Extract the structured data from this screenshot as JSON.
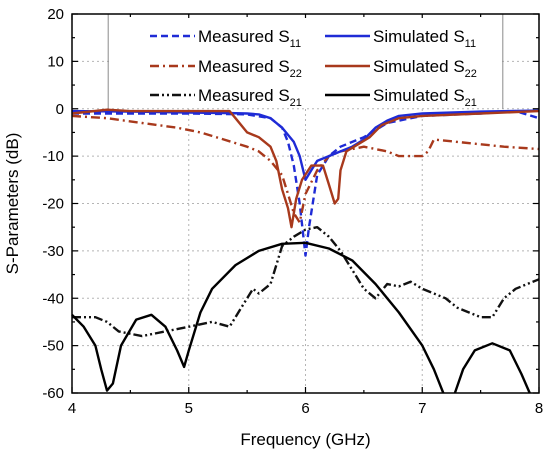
{
  "chart_data": {
    "type": "line",
    "title": "",
    "xlabel": "Frequency (GHz)",
    "ylabel": "S-Parameters (dB)",
    "xlim": [
      4,
      8
    ],
    "ylim": [
      -60,
      20
    ],
    "x_ticks": [
      4,
      5,
      6,
      7,
      8
    ],
    "y_ticks": [
      20,
      10,
      0,
      -10,
      -20,
      -30,
      -40,
      -50,
      -60
    ],
    "grid": true,
    "legend_position": "top",
    "series": [
      {
        "name": "Measured S11",
        "label_main": "Measured S",
        "label_sub": "11",
        "color": "#1f2bd6",
        "dash": "dashed",
        "points": [
          [
            4.0,
            -1.0
          ],
          [
            4.5,
            -1.0
          ],
          [
            5.0,
            -1.0
          ],
          [
            5.3,
            -1.1
          ],
          [
            5.5,
            -1.2
          ],
          [
            5.7,
            -2.0
          ],
          [
            5.8,
            -4.0
          ],
          [
            5.85,
            -7.0
          ],
          [
            5.9,
            -12.0
          ],
          [
            5.95,
            -20.0
          ],
          [
            6.0,
            -31.0
          ],
          [
            6.03,
            -25.0
          ],
          [
            6.1,
            -14.0
          ],
          [
            6.2,
            -10.0
          ],
          [
            6.3,
            -8.0
          ],
          [
            6.5,
            -6.0
          ],
          [
            6.7,
            -3.0
          ],
          [
            7.0,
            -1.5
          ],
          [
            7.5,
            -1.0
          ],
          [
            7.8,
            -0.5
          ],
          [
            8.0,
            -2.0
          ]
        ]
      },
      {
        "name": "Measured S22",
        "label_main": "Measured S",
        "label_sub": "22",
        "color": "#a8391c",
        "dash": "dashdot",
        "points": [
          [
            4.0,
            -1.5
          ],
          [
            4.3,
            -2.0
          ],
          [
            4.6,
            -3.0
          ],
          [
            4.9,
            -4.0
          ],
          [
            5.1,
            -5.0
          ],
          [
            5.3,
            -6.5
          ],
          [
            5.5,
            -8.0
          ],
          [
            5.6,
            -9.0
          ],
          [
            5.7,
            -11.0
          ],
          [
            5.8,
            -14.0
          ],
          [
            5.85,
            -18.0
          ],
          [
            5.9,
            -22.0
          ],
          [
            5.95,
            -24.0
          ],
          [
            6.0,
            -18.0
          ],
          [
            6.1,
            -13.0
          ],
          [
            6.2,
            -10.0
          ],
          [
            6.3,
            -9.0
          ],
          [
            6.5,
            -8.0
          ],
          [
            6.7,
            -9.0
          ],
          [
            6.8,
            -10.0
          ],
          [
            7.0,
            -10.0
          ],
          [
            7.05,
            -9.0
          ],
          [
            7.1,
            -6.5
          ],
          [
            7.3,
            -7.0
          ],
          [
            7.5,
            -7.5
          ],
          [
            7.7,
            -8.0
          ],
          [
            8.0,
            -8.5
          ]
        ]
      },
      {
        "name": "Measured S21",
        "label_main": "Measured S",
        "label_sub": "21",
        "color": "#111111",
        "dash": "dashdotdot",
        "points": [
          [
            4.0,
            -44.0
          ],
          [
            4.2,
            -44.0
          ],
          [
            4.3,
            -45.0
          ],
          [
            4.4,
            -47.0
          ],
          [
            4.6,
            -48.0
          ],
          [
            4.8,
            -47.0
          ],
          [
            5.0,
            -46.0
          ],
          [
            5.2,
            -45.0
          ],
          [
            5.35,
            -46.0
          ],
          [
            5.45,
            -42.0
          ],
          [
            5.55,
            -38.0
          ],
          [
            5.6,
            -39.0
          ],
          [
            5.7,
            -37.0
          ],
          [
            5.75,
            -33.0
          ],
          [
            5.8,
            -29.0
          ],
          [
            5.9,
            -27.0
          ],
          [
            6.0,
            -25.5
          ],
          [
            6.1,
            -25.0
          ],
          [
            6.2,
            -27.0
          ],
          [
            6.3,
            -30.0
          ],
          [
            6.4,
            -34.0
          ],
          [
            6.5,
            -38.0
          ],
          [
            6.6,
            -40.0
          ],
          [
            6.7,
            -37.0
          ],
          [
            6.8,
            -37.5
          ],
          [
            6.9,
            -36.5
          ],
          [
            7.0,
            -38.0
          ],
          [
            7.2,
            -40.0
          ],
          [
            7.3,
            -42.0
          ],
          [
            7.5,
            -44.0
          ],
          [
            7.6,
            -44.0
          ],
          [
            7.7,
            -40.0
          ],
          [
            7.8,
            -38.0
          ],
          [
            8.0,
            -36.0
          ]
        ]
      },
      {
        "name": "Simulated S11",
        "label_main": "Simulated S",
        "label_sub": "11",
        "color": "#1f2bd6",
        "dash": "solid",
        "points": [
          [
            4.0,
            -0.5
          ],
          [
            4.5,
            -0.6
          ],
          [
            5.0,
            -0.8
          ],
          [
            5.3,
            -0.9
          ],
          [
            5.5,
            -1.0
          ],
          [
            5.6,
            -1.2
          ],
          [
            5.7,
            -2.0
          ],
          [
            5.8,
            -4.0
          ],
          [
            5.9,
            -7.0
          ],
          [
            5.95,
            -10.0
          ],
          [
            6.0,
            -15.0
          ],
          [
            6.05,
            -13.0
          ],
          [
            6.1,
            -11.0
          ],
          [
            6.2,
            -10.0
          ],
          [
            6.3,
            -9.0
          ],
          [
            6.4,
            -8.0
          ],
          [
            6.5,
            -6.5
          ],
          [
            6.6,
            -4.0
          ],
          [
            6.7,
            -2.5
          ],
          [
            6.8,
            -1.5
          ],
          [
            7.0,
            -1.0
          ],
          [
            7.5,
            -0.6
          ],
          [
            8.0,
            -0.4
          ]
        ]
      },
      {
        "name": "Simulated S22",
        "label_main": "Simulated S",
        "label_sub": "22",
        "color": "#a8391c",
        "dash": "solid",
        "points": [
          [
            4.0,
            -1.0
          ],
          [
            4.3,
            -0.2
          ],
          [
            4.5,
            -0.5
          ],
          [
            5.0,
            -0.5
          ],
          [
            5.2,
            -0.5
          ],
          [
            5.35,
            -0.5
          ],
          [
            5.4,
            -2.0
          ],
          [
            5.5,
            -5.0
          ],
          [
            5.6,
            -6.0
          ],
          [
            5.7,
            -8.0
          ],
          [
            5.75,
            -11.0
          ],
          [
            5.8,
            -17.0
          ],
          [
            5.85,
            -21.0
          ],
          [
            5.88,
            -25.0
          ],
          [
            5.92,
            -19.0
          ],
          [
            5.97,
            -15.0
          ],
          [
            6.05,
            -12.0
          ],
          [
            6.15,
            -12.0
          ],
          [
            6.2,
            -16.0
          ],
          [
            6.25,
            -20.0
          ],
          [
            6.28,
            -19.0
          ],
          [
            6.3,
            -13.0
          ],
          [
            6.35,
            -9.0
          ],
          [
            6.45,
            -7.5
          ],
          [
            6.55,
            -6.0
          ],
          [
            6.65,
            -3.5
          ],
          [
            6.8,
            -2.0
          ],
          [
            7.0,
            -1.5
          ],
          [
            7.5,
            -1.0
          ],
          [
            8.0,
            -0.5
          ]
        ]
      },
      {
        "name": "Simulated S21",
        "label_main": "Simulated S",
        "label_sub": "21",
        "color": "#000000",
        "dash": "solid",
        "points": [
          [
            4.0,
            -43.5
          ],
          [
            4.1,
            -46.0
          ],
          [
            4.2,
            -50.0
          ],
          [
            4.25,
            -55.0
          ],
          [
            4.3,
            -59.5
          ],
          [
            4.35,
            -58.0
          ],
          [
            4.42,
            -50.0
          ],
          [
            4.55,
            -44.5
          ],
          [
            4.68,
            -43.5
          ],
          [
            4.8,
            -46.0
          ],
          [
            4.9,
            -51.0
          ],
          [
            4.96,
            -54.5
          ],
          [
            5.0,
            -51.0
          ],
          [
            5.1,
            -43.0
          ],
          [
            5.2,
            -38.0
          ],
          [
            5.4,
            -33.0
          ],
          [
            5.6,
            -30.0
          ],
          [
            5.8,
            -28.5
          ],
          [
            6.0,
            -28.3
          ],
          [
            6.2,
            -29.5
          ],
          [
            6.4,
            -32.0
          ],
          [
            6.6,
            -37.0
          ],
          [
            6.8,
            -43.0
          ],
          [
            7.0,
            -50.0
          ],
          [
            7.1,
            -55.0
          ],
          [
            7.18,
            -60.0
          ]
        ]
      },
      {
        "name": "",
        "label_main": "",
        "label_sub": "",
        "color": "#000000",
        "dash": "solid",
        "points": [
          [
            7.28,
            -60.0
          ],
          [
            7.35,
            -55.0
          ],
          [
            7.45,
            -51.0
          ],
          [
            7.6,
            -49.5
          ],
          [
            7.75,
            -51.0
          ],
          [
            7.85,
            -56.0
          ],
          [
            7.92,
            -60.0
          ]
        ]
      }
    ],
    "vertical_markers": [
      4.31,
      7.69
    ]
  }
}
